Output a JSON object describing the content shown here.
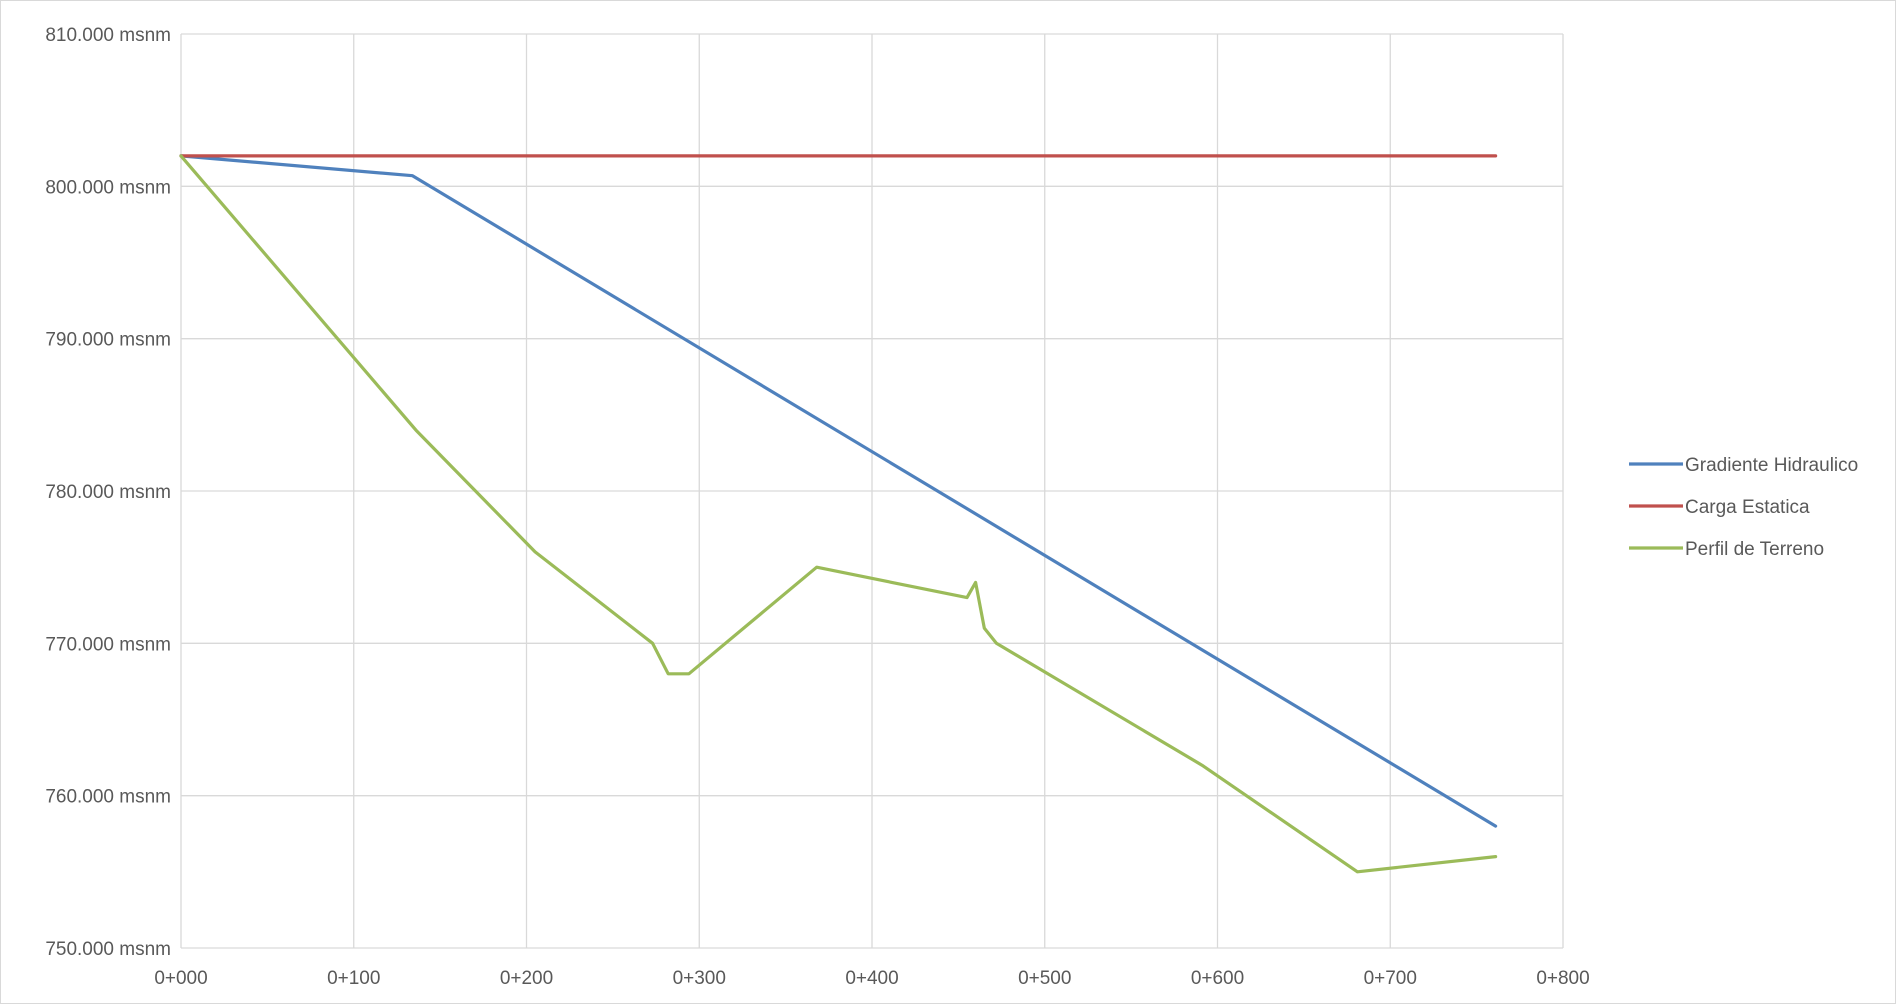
{
  "chart_data": {
    "type": "line",
    "title": "",
    "xlabel": "",
    "ylabel": "",
    "xlim": [
      0,
      800
    ],
    "ylim": [
      750,
      810
    ],
    "grid": true,
    "legend_position": "right",
    "x_tick_values": [
      0,
      100,
      200,
      300,
      400,
      500,
      600,
      700,
      800
    ],
    "x_tick_labels": [
      "0+000",
      "0+100",
      "0+200",
      "0+300",
      "0+400",
      "0+500",
      "0+600",
      "0+700",
      "0+800"
    ],
    "y_tick_values": [
      750,
      760,
      770,
      780,
      790,
      800,
      810
    ],
    "y_tick_labels": [
      "750.000 msnm",
      "760.000 msnm",
      "770.000 msnm",
      "780.000 msnm",
      "790.000 msnm",
      "800.000 msnm",
      "810.000 msnm"
    ],
    "series": [
      {
        "name": "Gradiente Hidraulico",
        "color": "#4f81bd",
        "x": [
          0,
          134,
          761
        ],
        "y": [
          802.0,
          800.7,
          758.0
        ]
      },
      {
        "name": "Carga Estatica",
        "color": "#c0504d",
        "x": [
          0,
          761
        ],
        "y": [
          802.0,
          802.0
        ]
      },
      {
        "name": "Perfil de Terreno",
        "color": "#9bbb59",
        "x": [
          0,
          136,
          205,
          273,
          282,
          294,
          368,
          455,
          460,
          465,
          472,
          591,
          681,
          761
        ],
        "y": [
          802.0,
          784.0,
          776.0,
          770.0,
          768.0,
          768.0,
          775.0,
          773.0,
          774.0,
          771.0,
          770.0,
          762.0,
          755.0,
          756.0
        ]
      }
    ]
  }
}
